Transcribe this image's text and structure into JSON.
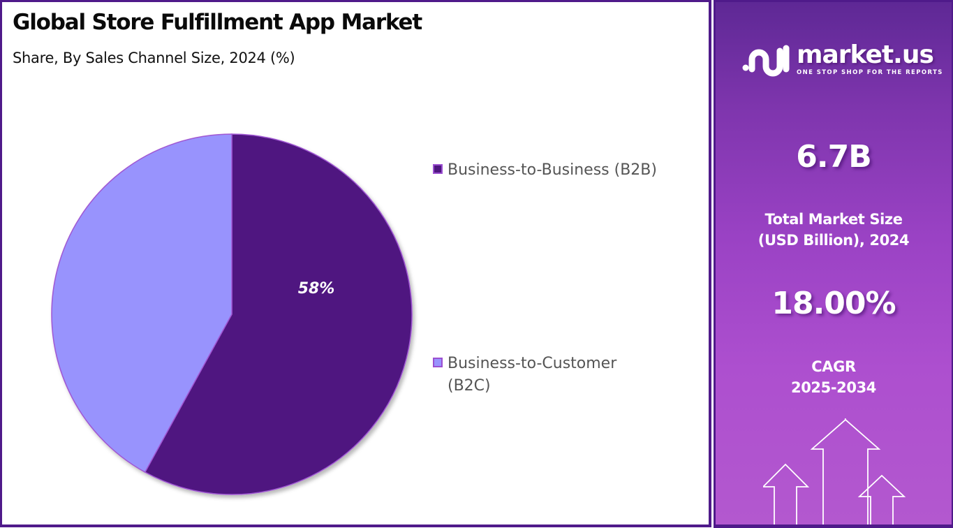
{
  "header": {
    "title": "Global Store Fulfillment App Market",
    "subtitle": "Share, By Sales Channel Size, 2024 (%)"
  },
  "chart_data": {
    "type": "pie",
    "title": "Global Store Fulfillment App Market",
    "subtitle": "Share, By Sales Channel Size, 2024 (%)",
    "categories": [
      "Business-to-Business (B2B)",
      "Business-to-Customer (B2C)"
    ],
    "values": [
      58,
      42
    ],
    "data_labels": [
      "58%",
      ""
    ],
    "colors": [
      "#4f1780",
      "#9893fd"
    ],
    "slice_border_color": "#a057d3",
    "start_angle_deg": 0,
    "direction": "clockwise",
    "legend_position": "right"
  },
  "legend": {
    "items": [
      {
        "label": "Business-to-Business (B2B)",
        "color": "#4f1780"
      },
      {
        "label": "Business-to-Customer (B2C)",
        "label_line1": "Business-to-Customer",
        "label_line2": "(B2C)",
        "color": "#9893fd"
      }
    ]
  },
  "sidebar": {
    "brand": {
      "name": "market.us",
      "tagline": "ONE STOP SHOP FOR THE REPORTS"
    },
    "market_size": {
      "value": "6.7B",
      "caption_line1": "Total Market Size",
      "caption_line2": "(USD Billion), 2024"
    },
    "cagr": {
      "value": "18.00%",
      "caption_line1": "CAGR",
      "caption_line2": "2025-2034"
    },
    "graphic": {
      "icon": "dollar-growth-arrows-icon",
      "symbol": "$"
    }
  },
  "colors": {
    "frame_border": "#4f1a8a",
    "sidebar_gradient_top": "#5e2895",
    "sidebar_gradient_bottom": "#b358cf",
    "title_text": "#0a0a0a",
    "legend_text": "#555555"
  }
}
